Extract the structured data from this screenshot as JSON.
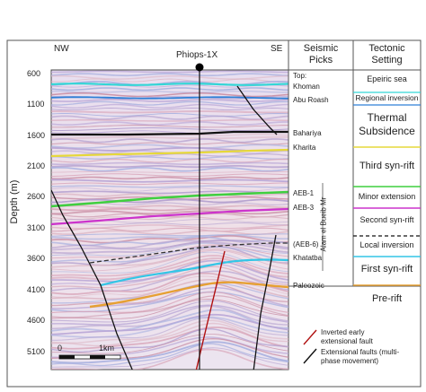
{
  "header": {
    "left": "NW",
    "right": "SE",
    "well": "Phiops-1X",
    "seismic_picks": [
      "Seismic",
      "Picks"
    ],
    "tectonic_setting": [
      "Tectonic",
      "Setting"
    ]
  },
  "axis": {
    "ylabel": "Depth (m)",
    "ticks": [
      "600",
      "1100",
      "1600",
      "2100",
      "2600",
      "3100",
      "3600",
      "4100",
      "4600",
      "5100"
    ]
  },
  "scale_bar": {
    "start": "0",
    "end": "1km"
  },
  "picks": [
    {
      "label": "Top:"
    },
    {
      "label": "Khoman"
    },
    {
      "label": "Abu Roash"
    },
    {
      "label": "Bahariya"
    },
    {
      "label": "Kharita"
    },
    {
      "label": "AEB-1"
    },
    {
      "label": "AEB-3"
    },
    {
      "label": "(AEB-6)"
    },
    {
      "label": "Khatatba"
    },
    {
      "label": "Paleozoic"
    }
  ],
  "group_label": "Alam el Bueib Mr",
  "tectonic": [
    {
      "label": "Epeiric sea"
    },
    {
      "label": "Regional inversion"
    },
    {
      "label": "Thermal"
    },
    {
      "label": "Subsidence"
    },
    {
      "label": "Third syn-rift"
    },
    {
      "label": "Minor extension"
    },
    {
      "label": "Second syn-rift"
    },
    {
      "label": "Local inversion"
    },
    {
      "label": "First syn-rift"
    },
    {
      "label": "Pre-rift"
    }
  ],
  "horizon_colors": {
    "khoman": "#33d6d6",
    "abu_roash": "#2f7fd6",
    "bahariya": "#111111",
    "kharita": "#e6d83a",
    "aeb1": "#3fcf3f",
    "aeb3": "#cc33cc",
    "aeb6": "#333333",
    "khatatba": "#33c6e6",
    "paleozoic": "#e6a033"
  },
  "legend": [
    {
      "label": "Inverted early",
      "label2": "extensional fault",
      "color": "#b01010"
    },
    {
      "label": "Extensional faults (multi-",
      "label2": "phase movement)",
      "color": "#111111"
    }
  ]
}
